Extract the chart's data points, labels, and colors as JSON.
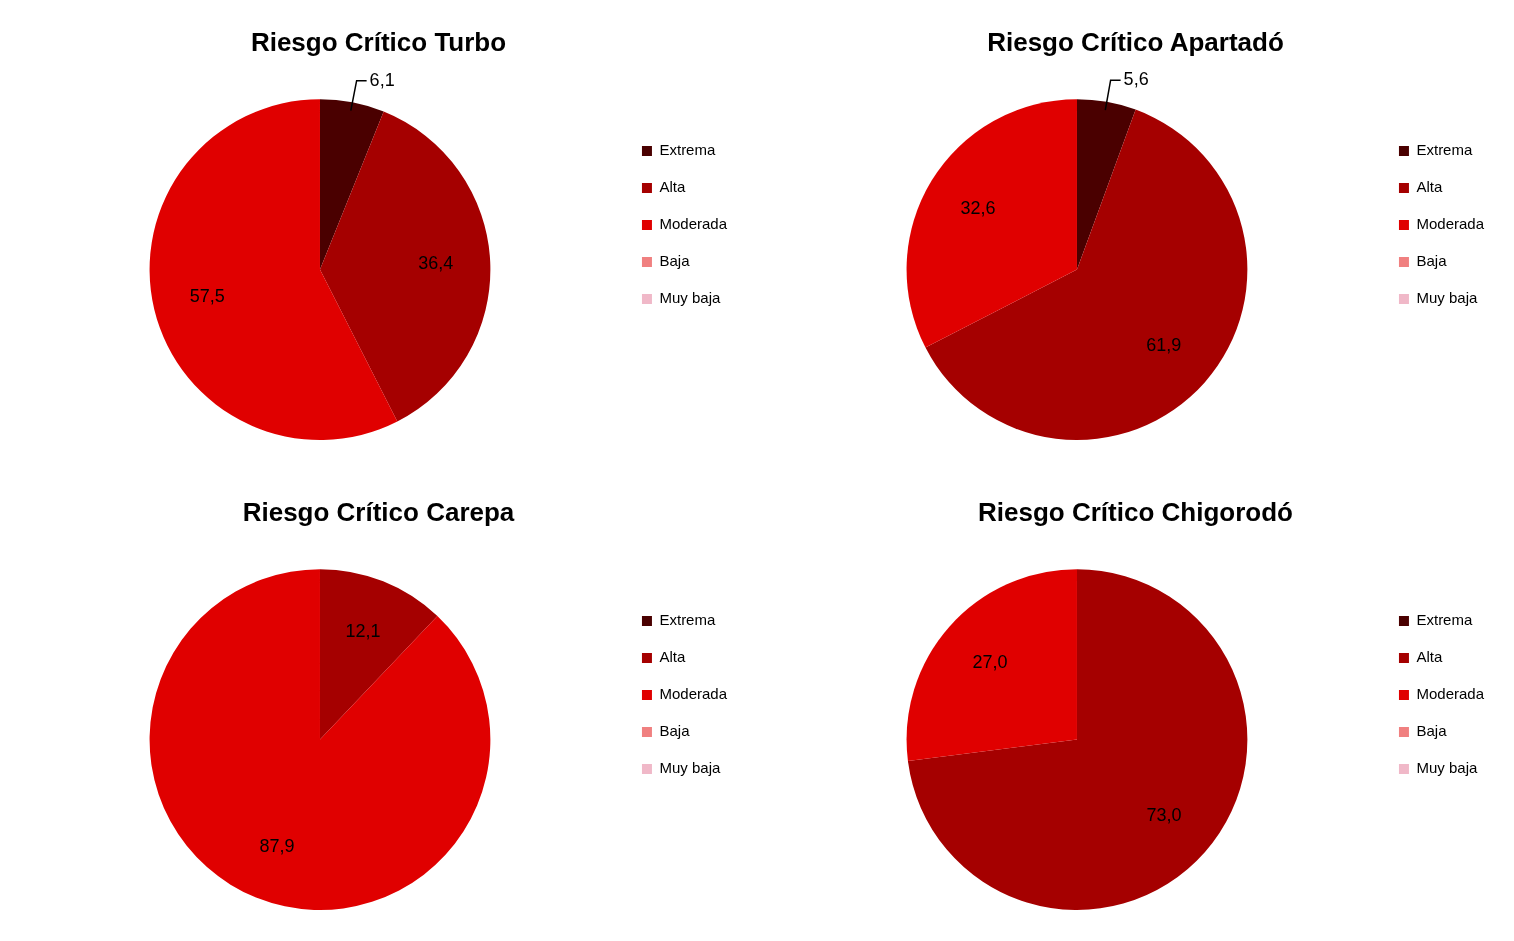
{
  "chart_data": [
    {
      "type": "pie",
      "title": "Riesgo Crítico Turbo",
      "categories": [
        "Extrema",
        "Alta",
        "Moderada",
        "Baja",
        "Muy baja"
      ],
      "values": [
        6.1,
        36.4,
        57.5,
        0,
        0
      ],
      "colors": [
        "#4a0000",
        "#a50000",
        "#e00000",
        "#f08080",
        "#f0b8c8"
      ],
      "value_labels": [
        "6,1",
        "36,4",
        "57,5",
        null,
        null
      ],
      "legend": "right"
    },
    {
      "type": "pie",
      "title": "Riesgo Crítico Apartadó",
      "categories": [
        "Extrema",
        "Alta",
        "Moderada",
        "Baja",
        "Muy baja"
      ],
      "values": [
        5.6,
        61.9,
        32.6,
        0,
        0
      ],
      "colors": [
        "#4a0000",
        "#a50000",
        "#e00000",
        "#f08080",
        "#f0b8c8"
      ],
      "value_labels": [
        "5,6",
        "61,9",
        "32,6",
        null,
        null
      ],
      "legend": "right"
    },
    {
      "type": "pie",
      "title": "Riesgo Crítico Carepa",
      "categories": [
        "Extrema",
        "Alta",
        "Moderada",
        "Baja",
        "Muy baja"
      ],
      "values": [
        0,
        12.1,
        87.9,
        0,
        0
      ],
      "colors": [
        "#4a0000",
        "#a50000",
        "#e00000",
        "#f08080",
        "#f0b8c8"
      ],
      "value_labels": [
        null,
        "12,1",
        "87,9",
        null,
        null
      ],
      "legend": "right"
    },
    {
      "type": "pie",
      "title": "Riesgo Crítico Chigorodó",
      "categories": [
        "Extrema",
        "Alta",
        "Moderada",
        "Baja",
        "Muy baja"
      ],
      "values": [
        0,
        73.0,
        27.0,
        0,
        0
      ],
      "colors": [
        "#4a0000",
        "#a50000",
        "#e00000",
        "#f08080",
        "#f0b8c8"
      ],
      "value_labels": [
        null,
        "73,0",
        "27,0",
        null,
        null
      ],
      "legend": "right"
    }
  ]
}
